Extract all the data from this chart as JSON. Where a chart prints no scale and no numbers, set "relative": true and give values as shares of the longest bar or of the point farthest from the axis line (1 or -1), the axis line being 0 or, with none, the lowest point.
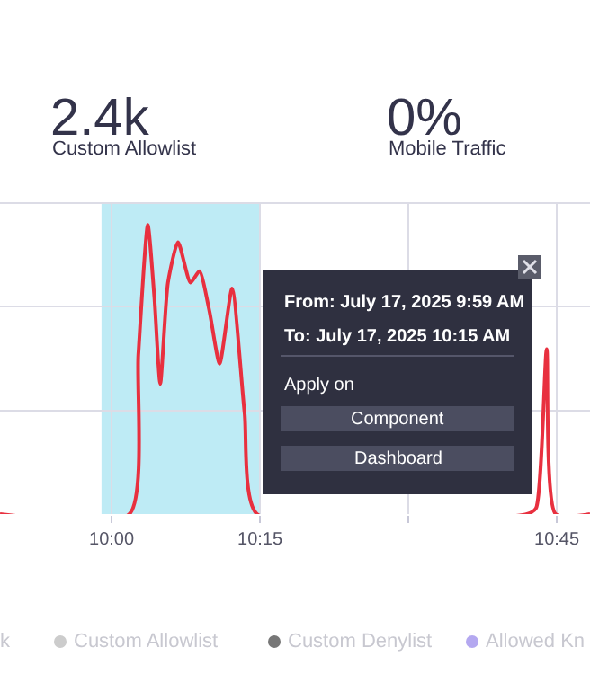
{
  "chart_data": {
    "type": "line",
    "relative": true,
    "x": [
      9.812,
      10.03,
      10.045,
      10.061,
      10.072,
      10.082,
      10.095,
      10.112,
      10.133,
      10.148,
      10.165,
      10.182,
      10.203,
      10.224,
      10.245,
      10.7,
      10.715,
      10.733,
      10.748,
      10.806
    ],
    "series": [
      {
        "color": "#e8303f",
        "values": [
          0,
          0,
          0.55,
          1.0,
          0.75,
          0.45,
          0.8,
          0.94,
          0.8,
          0.84,
          0.7,
          0.52,
          0.78,
          0.35,
          0,
          0,
          0.02,
          0.57,
          0,
          0
        ]
      }
    ],
    "xlim": [
      9.812,
      10.806
    ],
    "xticks": [
      {
        "value": 10,
        "label": "10:00"
      },
      {
        "value": 10.25,
        "label": "10:15"
      },
      {
        "value": 10.5,
        "label": null
      },
      {
        "value": 10.75,
        "label": "10:45"
      }
    ],
    "tick_labels": "x",
    "grid": true,
    "marker": "none",
    "line_style": "solid",
    "bands": [
      {
        "axis": "x",
        "from": 9.983,
        "to": 10.25,
        "color": "#a8e4f2"
      }
    ],
    "annotations": [
      "2.4k",
      "Custom Allowlist",
      "0%",
      "Mobile Traffic",
      "From: July 17, 2025 9:59 AM",
      "To: July 17, 2025 10:15 AM",
      "Apply on",
      "Component",
      "Dashboard",
      "k",
      "Custom Allowlist",
      "Custom Denylist",
      "Allowed Kn"
    ]
  }
}
